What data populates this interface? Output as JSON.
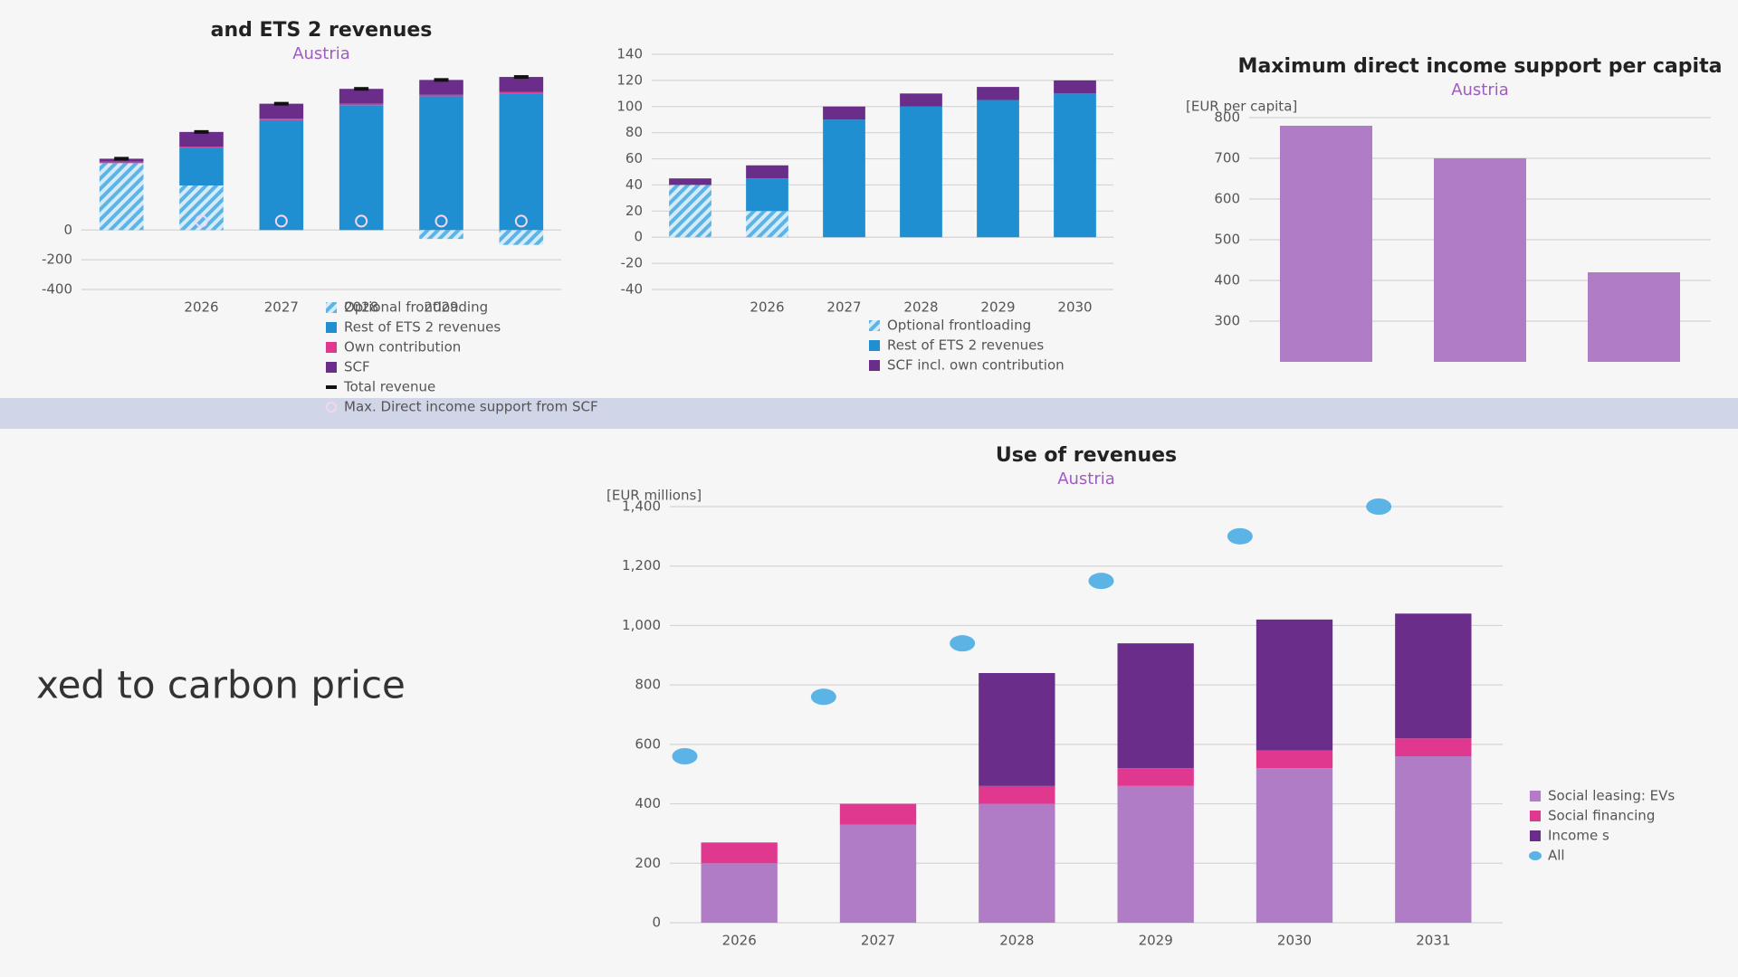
{
  "section_heading": "xed to carbon price",
  "chart_data": [
    {
      "type": "bar",
      "title": "and ETS 2 revenues",
      "subtitle": "Austria",
      "categories": [
        null,
        "2026",
        "2027",
        "2028",
        "2029",
        null
      ],
      "ylim": [
        -400,
        1000
      ],
      "yticks": [
        -400,
        -200,
        0
      ],
      "grid": true,
      "series": [
        {
          "name": "Optional frontloading",
          "style": "hatch",
          "color": "#5bb4e5",
          "values": [
            450,
            300,
            0,
            0,
            -60,
            -100
          ]
        },
        {
          "name": "Rest of ETS 2 revenues",
          "style": "bar",
          "color": "#1f8fd1",
          "values": [
            0,
            250,
            740,
            840,
            900,
            920
          ]
        },
        {
          "name": "Own contribution",
          "style": "bar",
          "color": "#e0388f",
          "values": [
            10,
            10,
            10,
            10,
            10,
            10
          ]
        },
        {
          "name": "SCF",
          "style": "bar",
          "color": "#6a2d8a",
          "values": [
            20,
            100,
            100,
            100,
            100,
            100
          ]
        },
        {
          "name": "Total revenue",
          "style": "dash",
          "color": "#111111",
          "values": [
            480,
            660,
            850,
            950,
            1010,
            1030
          ]
        },
        {
          "name": "Max. Direct income support from SCF",
          "style": "circle",
          "color": "#f3d6ef",
          "values": [
            null,
            60,
            60,
            60,
            60,
            60
          ]
        }
      ]
    },
    {
      "type": "bar",
      "categories": [
        null,
        "2026",
        "2027",
        "2028",
        "2029",
        "2030"
      ],
      "ylim": [
        -40,
        140
      ],
      "yticks": [
        -40,
        -20,
        0,
        20,
        40,
        60,
        80,
        100,
        120,
        140
      ],
      "grid": true,
      "series": [
        {
          "name": "Optional frontloading",
          "style": "hatch",
          "color": "#5bb4e5",
          "values": [
            40,
            20,
            0,
            0,
            0,
            0
          ]
        },
        {
          "name": "Rest of ETS 2 revenues",
          "style": "bar",
          "color": "#1f8fd1",
          "values": [
            0,
            25,
            90,
            100,
            105,
            110
          ]
        },
        {
          "name": "SCF incl. own contribution",
          "style": "bar",
          "color": "#6a2d8a",
          "values": [
            5,
            10,
            10,
            10,
            10,
            10
          ]
        }
      ]
    },
    {
      "type": "simplebar",
      "title": "Maximum direct income support per capita",
      "subtitle": "Austria",
      "y_label": "[EUR per capita]",
      "categories": [
        null,
        null,
        null
      ],
      "values": [
        780,
        700,
        420
      ],
      "color": "#b07cc6",
      "ylim": [
        200,
        800
      ],
      "yticks": [
        300,
        400,
        500,
        600,
        700,
        800
      ],
      "grid": true
    },
    {
      "type": "bar",
      "title": "Use of revenues",
      "subtitle": "Austria",
      "y_label": "[EUR millions]",
      "categories": [
        "2026",
        "2027",
        "2028",
        "2029",
        "2030",
        "2031"
      ],
      "ylim": [
        0,
        1400
      ],
      "yticks": [
        0,
        200,
        400,
        600,
        800,
        {
          "value": 1000,
          "label": "1,000"
        },
        {
          "value": 1200,
          "label": "1,200"
        },
        {
          "value": 1400,
          "label": "1,400"
        }
      ],
      "grid": true,
      "series": [
        {
          "name": "Social leasing: EVs",
          "style": "bar",
          "color": "#b07cc6",
          "values": [
            200,
            330,
            400,
            460,
            520,
            560
          ]
        },
        {
          "name": "Social financing",
          "style": "bar",
          "color": "#e0388f",
          "values": [
            70,
            70,
            60,
            60,
            60,
            60
          ]
        },
        {
          "name": "Income s",
          "style": "bar",
          "color": "#6a2d8a",
          "values": [
            0,
            0,
            380,
            420,
            440,
            420
          ]
        },
        {
          "name": "All",
          "style": "dot",
          "color": "#5bb4e5",
          "values": [
            560,
            760,
            940,
            1150,
            1300,
            1400
          ]
        }
      ]
    }
  ]
}
